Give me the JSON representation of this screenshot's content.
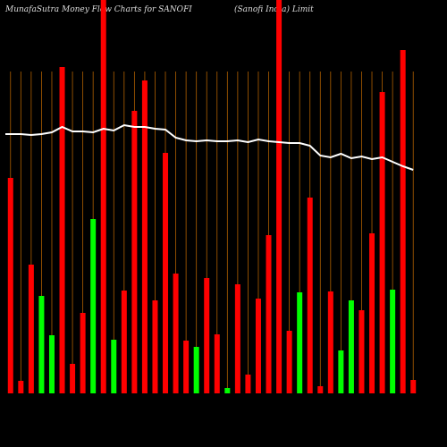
{
  "chart_data": {
    "type": "bar",
    "title": "MunafaSutra  Money Flow  Charts for SANOFI",
    "subtitle": "(Sanofi  India)  Limit",
    "values": [
      241,
      14,
      144,
      109,
      65,
      365,
      33,
      90,
      195,
      440,
      60,
      115,
      316,
      350,
      104,
      269,
      134,
      59,
      52,
      129,
      66,
      6,
      122,
      21,
      106,
      177,
      440,
      70,
      113,
      219,
      8,
      114,
      48,
      104,
      93,
      179,
      337,
      116,
      384,
      15
    ],
    "colors": [
      "#ff0000",
      "#ff0000",
      "#ff0000",
      "#00ff00",
      "#00ff00",
      "#ff0000",
      "#ff0000",
      "#ff0000",
      "#00ff00",
      "#ff0000",
      "#00ff00",
      "#ff0000",
      "#ff0000",
      "#ff0000",
      "#ff0000",
      "#ff0000",
      "#ff0000",
      "#ff0000",
      "#00ff00",
      "#ff0000",
      "#ff0000",
      "#00ff00",
      "#ff0000",
      "#ff0000",
      "#ff0000",
      "#ff0000",
      "#ff0000",
      "#ff0000",
      "#00ff00",
      "#ff0000",
      "#ff0000",
      "#ff0000",
      "#00ff00",
      "#00ff00",
      "#ff0000",
      "#ff0000",
      "#ff0000",
      "#00ff00",
      "#ff0000",
      "#ff0000"
    ],
    "line": {
      "color": "#ffffff",
      "values": [
        290,
        290,
        289,
        290,
        292,
        298,
        293,
        293,
        292,
        296,
        294,
        300,
        298,
        298,
        296,
        295,
        286,
        283,
        282,
        283,
        282,
        282,
        283,
        281,
        284,
        282,
        281,
        280,
        280,
        277,
        266,
        264,
        268,
        263,
        265,
        262,
        264,
        259,
        254,
        250
      ]
    },
    "ylim": [
      0,
      440
    ],
    "grid_color": "#b06000"
  }
}
